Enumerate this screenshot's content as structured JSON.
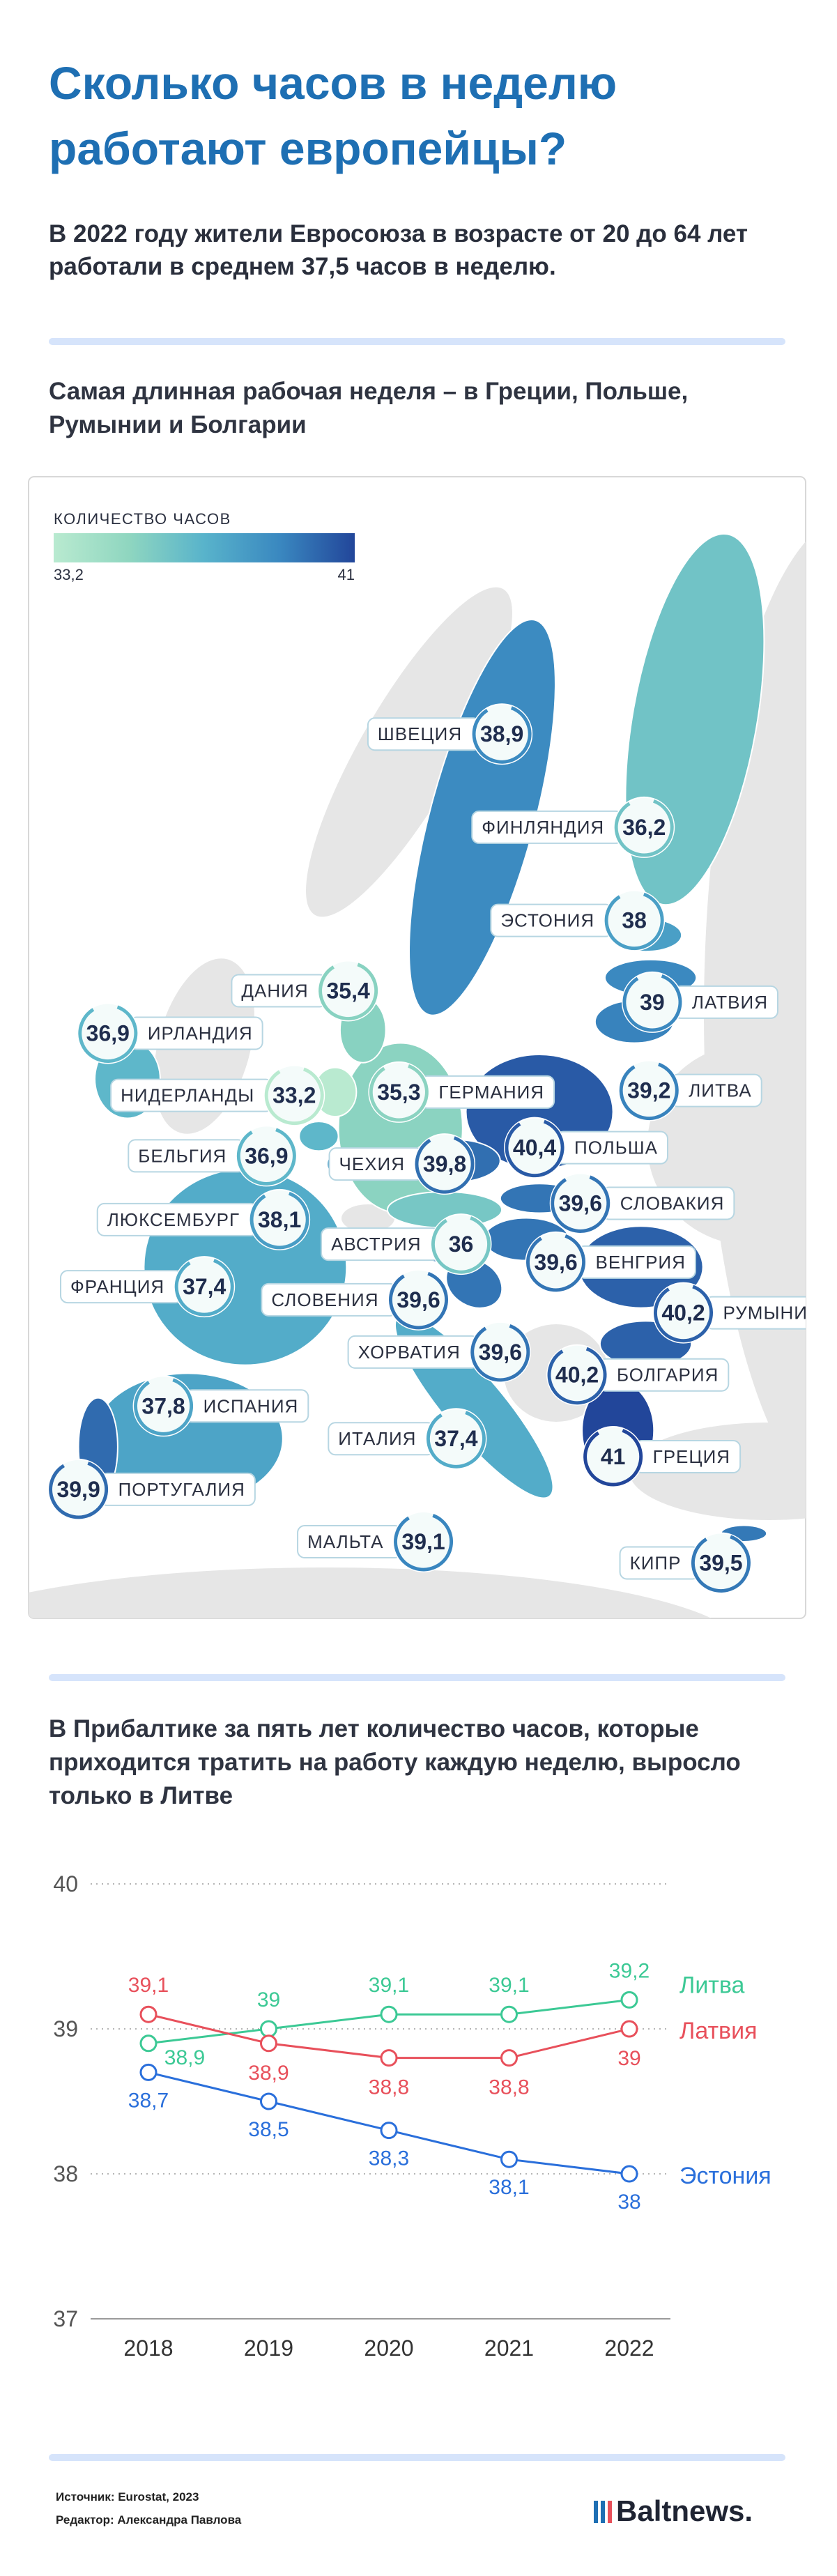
{
  "title": "Сколько часов в неделю работают европейцы?",
  "subtitle": "В 2022 году жители Евросоюза в возрасте от 20 до 64 лет работали в среднем 37,5 часов в неделю.",
  "map": {
    "heading": "Самая длинная рабочая неделя – в Греции, Польше, Румынии и Болгарии",
    "legend_title": "КОЛИЧЕСТВО ЧАСОВ",
    "legend_min": {
      "value": 33.2,
      "label": "33,2"
    },
    "legend_max": 41,
    "colors": [
      "#b9ead0",
      "#8fd6c0",
      "#58b3cb",
      "#3a88c0",
      "#22469a"
    ],
    "names": [
      "ШВЕЦИЯ",
      "ФИНЛЯНДИЯ",
      "ЭСТОНИЯ",
      "ЛАТВИЯ",
      "ЛИТВА",
      "ДАНИЯ",
      "ИРЛАНДИЯ",
      "НИДЕРЛАНДЫ",
      "ГЕРМАНИЯ",
      "БЕЛЬГИЯ",
      "ЧЕХИЯ",
      "ПОЛЬША",
      "ЛЮКСЕМБУРГ",
      "СЛОВАКИЯ",
      "АВСТРИЯ",
      "ФРАНЦИЯ",
      "ВЕНГРИЯ",
      "СЛОВЕНИЯ",
      "РУМЫНИЯ",
      "ХОРВАТИЯ",
      "БОЛГАРИЯ",
      "ИСПАНИЯ",
      "ИТАЛИЯ",
      "ГРЕЦИЯ",
      "ПОРТУГАЛИЯ",
      "МАЛЬТА",
      "КИПР"
    ],
    "values": [
      38.9,
      36.2,
      38,
      39,
      39.2,
      35.4,
      36.9,
      33.2,
      35.3,
      36.9,
      39.8,
      40.4,
      38.1,
      39.6,
      36,
      37.4,
      39.6,
      39.6,
      40.2,
      39.6,
      40.2,
      37.8,
      37.4,
      41,
      39.9,
      39.1,
      39.5
    ],
    "value_labels": [
      "38,9",
      "36,2",
      "38",
      "39",
      "39,2",
      "35,4",
      "36,9",
      "33,2",
      "35,3",
      "36,9",
      "39,8",
      "40,4",
      "38,1",
      "39,6",
      "36",
      "37,4",
      "39,6",
      "39,6",
      "40,2",
      "39,6",
      "40,2",
      "37,8",
      "37,4",
      "41",
      "39,9",
      "39,1",
      "39,5"
    ]
  },
  "chart_data": {
    "type": "line",
    "title": "В Прибалтике за пять лет количество часов, которые приходится тратить на работу каждую неделю, выросло только в Литве",
    "categories": [
      "2018",
      "2019",
      "2020",
      "2021",
      "2022"
    ],
    "ylim": [
      37,
      40
    ],
    "yticks": [
      37,
      38,
      39,
      40
    ],
    "grid": true,
    "series": [
      {
        "name": "Литва",
        "color": "#3cc995",
        "values": [
          38.9,
          39,
          39.1,
          39.1,
          39.2
        ],
        "value_labels": [
          "38,9",
          "39",
          "39,1",
          "39,1",
          "39,2"
        ]
      },
      {
        "name": "Латвия",
        "color": "#e8505b",
        "values": [
          39.1,
          38.9,
          38.8,
          38.8,
          39
        ],
        "value_labels": [
          "39,1",
          "38,9",
          "38,8",
          "38,8",
          "39"
        ]
      },
      {
        "name": "Эстония",
        "color": "#2a6fdb",
        "values": [
          38.7,
          38.5,
          38.3,
          38.1,
          38
        ],
        "value_labels": [
          "38,7",
          "38,5",
          "38,3",
          "38,1",
          "38"
        ]
      }
    ]
  },
  "footer": {
    "source": "Источник: Eurostat, 2023",
    "editor": "Редактор: Александра Павлова",
    "logo": "Baltnews."
  }
}
